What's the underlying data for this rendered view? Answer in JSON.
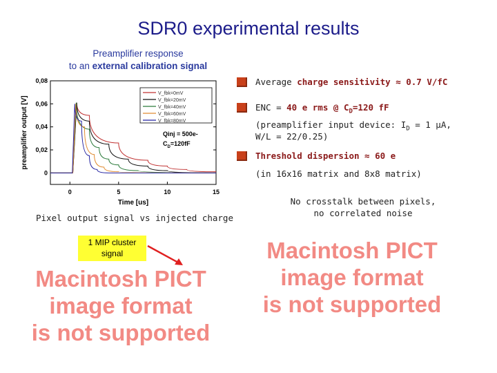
{
  "title": "SDR0 experimental results",
  "subtitle": {
    "line1": "Preamplifier response",
    "line2_prefix": "to an ",
    "line2_bold": "external calibration signal"
  },
  "bullets": [
    {
      "prefix": "Average ",
      "bold": "charge sensitivity ≈ 0.7 V/fC"
    },
    {
      "prefix": "ENC = ",
      "bold": "40 e rms @ C",
      "sub": "D",
      "bold2": "=120 fF",
      "note1": "(preamplifier input device: I",
      "note1_sub": "D",
      "note1_rest": " = 1 μA,",
      "note2": "W/L = 22/0.25)"
    },
    {
      "bold": "Threshold dispersion ≈ 60 e",
      "note": "(in 16x16 matrix and 8x8 matrix)"
    }
  ],
  "left_caption": "Pixel output signal vs injected charge",
  "right_caption": {
    "line1": "No crosstalk between pixels,",
    "line2": "no correlated noise"
  },
  "pict_placeholder": {
    "line1": "Macintosh PICT",
    "line2": "image format",
    "line3": "is not supported"
  },
  "mip_label": {
    "line1": "1 MIP cluster",
    "line2": "signal"
  },
  "colors": {
    "title": "#1c1c8a",
    "highlight": "#8b1a1a",
    "bullet": "#c8401a",
    "pict": "#f28a84",
    "label_bg": "#ffff33",
    "arrow": "#e02020"
  },
  "chart_data": {
    "type": "line",
    "xlabel": "Time [us]",
    "ylabel": "preamplifier output [V]",
    "xlim": [
      -2,
      15
    ],
    "ylim": [
      -0.01,
      0.08
    ],
    "xticks": [
      "0",
      "5",
      "10",
      "15"
    ],
    "yticks": [
      "0,08",
      "0,06",
      "0,04",
      "0,02",
      "0"
    ],
    "annotation": {
      "line1": "Qinj = 500e-",
      "line2": "C",
      "line2_sub": "D",
      "line2_rest": "=120fF"
    },
    "legend_position": "top-right",
    "series": [
      {
        "name": "V_fbk=0mV",
        "color": "#c03030",
        "x": [
          -2,
          0.3,
          0.7,
          2,
          5,
          8,
          10,
          12,
          15
        ],
        "y": [
          0,
          0,
          0.061,
          0.05,
          0.026,
          0.011,
          0.006,
          0.003,
          0.001
        ]
      },
      {
        "name": "V_fbk=20mV",
        "color": "#111111",
        "x": [
          -2,
          0.3,
          0.7,
          2,
          4,
          6,
          8,
          10,
          15
        ],
        "y": [
          0,
          0,
          0.061,
          0.045,
          0.025,
          0.012,
          0.006,
          0.002,
          0
        ]
      },
      {
        "name": "V_fbk=40mV",
        "color": "#2a7a3a",
        "x": [
          -2,
          0.3,
          0.65,
          2,
          3,
          4,
          5,
          7,
          15
        ],
        "y": [
          0,
          0,
          0.061,
          0.038,
          0.022,
          0.012,
          0.007,
          0.002,
          0
        ]
      },
      {
        "name": "V_fbk=60mV",
        "color": "#e08a30",
        "x": [
          -2,
          0.3,
          0.6,
          1.5,
          2.5,
          3.5,
          5,
          15
        ],
        "y": [
          0,
          0,
          0.06,
          0.04,
          0.016,
          0.005,
          0.001,
          0
        ]
      },
      {
        "name": "V_fbk=80mV",
        "color": "#2020a0",
        "x": [
          -2,
          0.25,
          0.5,
          1.2,
          2,
          2.8,
          4,
          15
        ],
        "y": [
          0,
          0,
          0.06,
          0.045,
          0.015,
          0.003,
          0,
          0
        ]
      }
    ]
  }
}
